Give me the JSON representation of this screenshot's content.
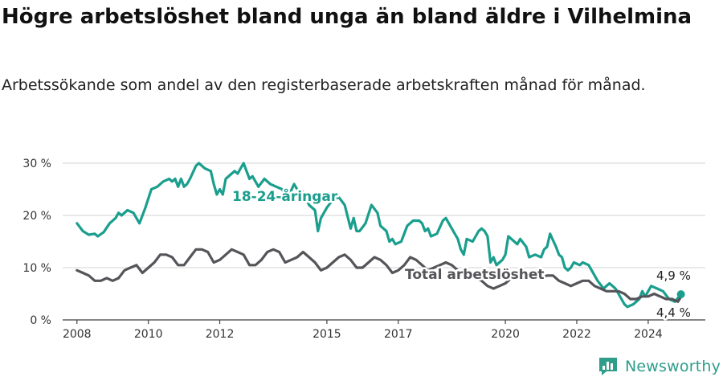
{
  "title": "Högre arbetslöshet bland unga än bland äldre i Vilhelmina",
  "subtitle": "Arbetssökande som andel av den registerbaserade arbetskraften månad för månad.",
  "brand": {
    "name": "Newsworthy",
    "color": "#2e9d8a"
  },
  "chart_data": {
    "type": "line",
    "x_ticks": [
      "2008",
      "2010",
      "2012",
      "2015",
      "2017",
      "2020",
      "2022",
      "2024"
    ],
    "y_ticks": [
      "0 %",
      "10 %",
      "20 %",
      "30 %"
    ],
    "ylim": [
      0,
      30
    ],
    "grid": true,
    "series": [
      {
        "name": "18-24-åringar",
        "color": "#1a9e8d",
        "end_label": "4,9 %",
        "points": [
          [
            "2008-01",
            18.5
          ],
          [
            "2008-03",
            17.0
          ],
          [
            "2008-05",
            16.3
          ],
          [
            "2008-07",
            16.5
          ],
          [
            "2008-08",
            16.0
          ],
          [
            "2008-10",
            16.8
          ],
          [
            "2008-12",
            18.5
          ],
          [
            "2009-02",
            19.5
          ],
          [
            "2009-03",
            20.5
          ],
          [
            "2009-04",
            20.0
          ],
          [
            "2009-06",
            21.0
          ],
          [
            "2009-08",
            20.5
          ],
          [
            "2009-10",
            18.5
          ],
          [
            "2009-12",
            21.5
          ],
          [
            "2010-02",
            25.0
          ],
          [
            "2010-04",
            25.5
          ],
          [
            "2010-06",
            26.5
          ],
          [
            "2010-08",
            27.0
          ],
          [
            "2010-09",
            26.5
          ],
          [
            "2010-10",
            27.0
          ],
          [
            "2010-11",
            25.5
          ],
          [
            "2010-12",
            27.0
          ],
          [
            "2011-01",
            25.5
          ],
          [
            "2011-02",
            26.0
          ],
          [
            "2011-03",
            27.0
          ],
          [
            "2011-05",
            29.5
          ],
          [
            "2011-06",
            30.0
          ],
          [
            "2011-08",
            29.0
          ],
          [
            "2011-10",
            28.5
          ],
          [
            "2011-11",
            26.0
          ],
          [
            "2011-12",
            24.0
          ],
          [
            "2012-01",
            25.0
          ],
          [
            "2012-02",
            24.0
          ],
          [
            "2012-03",
            27.0
          ],
          [
            "2012-05",
            28.0
          ],
          [
            "2012-06",
            28.5
          ],
          [
            "2012-07",
            28.0
          ],
          [
            "2012-08",
            29.0
          ],
          [
            "2012-09",
            30.0
          ],
          [
            "2012-10",
            28.5
          ],
          [
            "2012-11",
            27.0
          ],
          [
            "2012-12",
            27.5
          ],
          [
            "2013-02",
            25.5
          ],
          [
            "2013-04",
            27.0
          ],
          [
            "2013-06",
            26.0
          ],
          [
            "2013-08",
            25.5
          ],
          [
            "2013-10",
            25.0
          ],
          [
            "2013-11",
            24.0
          ],
          [
            "2013-12",
            23.5
          ],
          [
            "2014-02",
            26.0
          ],
          [
            "2014-03",
            25.0
          ],
          [
            "2014-05",
            24.5
          ],
          [
            "2014-07",
            22.0
          ],
          [
            "2014-09",
            21.0
          ],
          [
            "2014-10",
            17.0
          ],
          [
            "2014-11",
            19.5
          ],
          [
            "2014-12",
            20.5
          ],
          [
            "2015-01",
            21.5
          ],
          [
            "2015-03",
            23.0
          ],
          [
            "2015-05",
            23.5
          ],
          [
            "2015-07",
            22.0
          ],
          [
            "2015-09",
            17.5
          ],
          [
            "2015-10",
            19.5
          ],
          [
            "2015-11",
            17.0
          ],
          [
            "2015-12",
            17.0
          ],
          [
            "2016-02",
            18.5
          ],
          [
            "2016-04",
            22.0
          ],
          [
            "2016-06",
            20.5
          ],
          [
            "2016-07",
            18.0
          ],
          [
            "2016-09",
            17.0
          ],
          [
            "2016-10",
            15.0
          ],
          [
            "2016-11",
            15.5
          ],
          [
            "2016-12",
            14.5
          ],
          [
            "2017-02",
            15.0
          ],
          [
            "2017-04",
            18.0
          ],
          [
            "2017-06",
            19.0
          ],
          [
            "2017-08",
            19.0
          ],
          [
            "2017-09",
            18.5
          ],
          [
            "2017-10",
            17.0
          ],
          [
            "2017-11",
            17.5
          ],
          [
            "2017-12",
            16.0
          ],
          [
            "2018-02",
            16.5
          ],
          [
            "2018-04",
            19.0
          ],
          [
            "2018-05",
            19.5
          ],
          [
            "2018-07",
            17.5
          ],
          [
            "2018-09",
            15.5
          ],
          [
            "2018-10",
            13.5
          ],
          [
            "2018-11",
            12.5
          ],
          [
            "2018-12",
            15.5
          ],
          [
            "2019-02",
            15.0
          ],
          [
            "2019-04",
            17.0
          ],
          [
            "2019-05",
            17.5
          ],
          [
            "2019-06",
            17.0
          ],
          [
            "2019-07",
            16.0
          ],
          [
            "2019-08",
            11.0
          ],
          [
            "2019-09",
            12.0
          ],
          [
            "2019-10",
            10.5
          ],
          [
            "2019-11",
            11.0
          ],
          [
            "2019-12",
            11.5
          ],
          [
            "2020-01",
            12.5
          ],
          [
            "2020-02",
            16.0
          ],
          [
            "2020-04",
            15.0
          ],
          [
            "2020-05",
            14.5
          ],
          [
            "2020-06",
            15.5
          ],
          [
            "2020-08",
            14.0
          ],
          [
            "2020-09",
            12.0
          ],
          [
            "2020-11",
            12.5
          ],
          [
            "2021-01",
            12.0
          ],
          [
            "2021-02",
            13.5
          ],
          [
            "2021-03",
            14.0
          ],
          [
            "2021-04",
            16.5
          ],
          [
            "2021-06",
            14.0
          ],
          [
            "2021-07",
            12.5
          ],
          [
            "2021-08",
            12.0
          ],
          [
            "2021-09",
            10.0
          ],
          [
            "2021-10",
            9.5
          ],
          [
            "2021-11",
            10.0
          ],
          [
            "2021-12",
            11.0
          ],
          [
            "2022-02",
            10.5
          ],
          [
            "2022-03",
            11.0
          ],
          [
            "2022-05",
            10.5
          ],
          [
            "2022-06",
            9.5
          ],
          [
            "2022-08",
            7.5
          ],
          [
            "2022-10",
            6.0
          ],
          [
            "2022-12",
            7.0
          ],
          [
            "2023-02",
            6.0
          ],
          [
            "2023-03",
            5.0
          ],
          [
            "2023-04",
            4.0
          ],
          [
            "2023-05",
            3.0
          ],
          [
            "2023-06",
            2.5
          ],
          [
            "2023-08",
            3.0
          ],
          [
            "2023-10",
            4.0
          ],
          [
            "2023-11",
            5.5
          ],
          [
            "2023-12",
            4.5
          ],
          [
            "2024-02",
            6.5
          ],
          [
            "2024-04",
            6.0
          ],
          [
            "2024-06",
            5.5
          ],
          [
            "2024-08",
            4.0
          ],
          [
            "2024-10",
            3.5
          ],
          [
            "2024-12",
            4.9
          ]
        ]
      },
      {
        "name": "Total arbetslöshet",
        "color": "#555459",
        "end_label": "4,4 %",
        "points": [
          [
            "2008-01",
            9.5
          ],
          [
            "2008-03",
            9.0
          ],
          [
            "2008-05",
            8.5
          ],
          [
            "2008-07",
            7.5
          ],
          [
            "2008-09",
            7.5
          ],
          [
            "2008-11",
            8.0
          ],
          [
            "2009-01",
            7.5
          ],
          [
            "2009-03",
            8.0
          ],
          [
            "2009-05",
            9.5
          ],
          [
            "2009-07",
            10.0
          ],
          [
            "2009-09",
            10.5
          ],
          [
            "2009-11",
            9.0
          ],
          [
            "2010-01",
            10.0
          ],
          [
            "2010-03",
            11.0
          ],
          [
            "2010-05",
            12.5
          ],
          [
            "2010-07",
            12.5
          ],
          [
            "2010-09",
            12.0
          ],
          [
            "2010-11",
            10.5
          ],
          [
            "2011-01",
            10.5
          ],
          [
            "2011-03",
            12.0
          ],
          [
            "2011-05",
            13.5
          ],
          [
            "2011-07",
            13.5
          ],
          [
            "2011-09",
            13.0
          ],
          [
            "2011-11",
            11.0
          ],
          [
            "2012-01",
            11.5
          ],
          [
            "2012-03",
            12.5
          ],
          [
            "2012-05",
            13.5
          ],
          [
            "2012-07",
            13.0
          ],
          [
            "2012-09",
            12.5
          ],
          [
            "2012-11",
            10.5
          ],
          [
            "2013-01",
            10.5
          ],
          [
            "2013-03",
            11.5
          ],
          [
            "2013-05",
            13.0
          ],
          [
            "2013-07",
            13.5
          ],
          [
            "2013-09",
            13.0
          ],
          [
            "2013-11",
            11.0
          ],
          [
            "2014-01",
            11.5
          ],
          [
            "2014-03",
            12.0
          ],
          [
            "2014-05",
            13.0
          ],
          [
            "2014-07",
            12.0
          ],
          [
            "2014-09",
            11.0
          ],
          [
            "2014-11",
            9.5
          ],
          [
            "2015-01",
            10.0
          ],
          [
            "2015-03",
            11.0
          ],
          [
            "2015-05",
            12.0
          ],
          [
            "2015-07",
            12.5
          ],
          [
            "2015-09",
            11.5
          ],
          [
            "2015-11",
            10.0
          ],
          [
            "2016-01",
            10.0
          ],
          [
            "2016-03",
            11.0
          ],
          [
            "2016-05",
            12.0
          ],
          [
            "2016-07",
            11.5
          ],
          [
            "2016-09",
            10.5
          ],
          [
            "2016-11",
            9.0
          ],
          [
            "2017-01",
            9.5
          ],
          [
            "2017-03",
            10.5
          ],
          [
            "2017-05",
            12.0
          ],
          [
            "2017-07",
            11.5
          ],
          [
            "2017-09",
            10.5
          ],
          [
            "2017-11",
            9.5
          ],
          [
            "2018-01",
            10.0
          ],
          [
            "2018-03",
            10.5
          ],
          [
            "2018-05",
            11.0
          ],
          [
            "2018-07",
            10.5
          ],
          [
            "2018-09",
            9.5
          ],
          [
            "2018-11",
            8.5
          ],
          [
            "2019-01",
            8.5
          ],
          [
            "2019-03",
            8.0
          ],
          [
            "2019-05",
            7.5
          ],
          [
            "2019-07",
            6.5
          ],
          [
            "2019-09",
            6.0
          ],
          [
            "2019-11",
            6.5
          ],
          [
            "2020-01",
            7.0
          ],
          [
            "2020-03",
            8.0
          ],
          [
            "2020-05",
            9.0
          ],
          [
            "2020-07",
            9.5
          ],
          [
            "2020-09",
            9.0
          ],
          [
            "2020-11",
            8.0
          ],
          [
            "2021-01",
            8.0
          ],
          [
            "2021-03",
            8.5
          ],
          [
            "2021-05",
            8.5
          ],
          [
            "2021-07",
            7.5
          ],
          [
            "2021-09",
            7.0
          ],
          [
            "2021-11",
            6.5
          ],
          [
            "2022-01",
            7.0
          ],
          [
            "2022-03",
            7.5
          ],
          [
            "2022-05",
            7.5
          ],
          [
            "2022-07",
            6.5
          ],
          [
            "2022-09",
            6.0
          ],
          [
            "2022-11",
            5.5
          ],
          [
            "2023-01",
            5.5
          ],
          [
            "2023-03",
            5.5
          ],
          [
            "2023-05",
            5.0
          ],
          [
            "2023-07",
            4.0
          ],
          [
            "2023-09",
            4.0
          ],
          [
            "2023-11",
            4.5
          ],
          [
            "2024-01",
            4.5
          ],
          [
            "2024-03",
            5.0
          ],
          [
            "2024-05",
            4.5
          ],
          [
            "2024-07",
            4.0
          ],
          [
            "2024-09",
            4.0
          ],
          [
            "2024-11",
            3.5
          ],
          [
            "2024-12",
            4.4
          ]
        ]
      }
    ]
  }
}
